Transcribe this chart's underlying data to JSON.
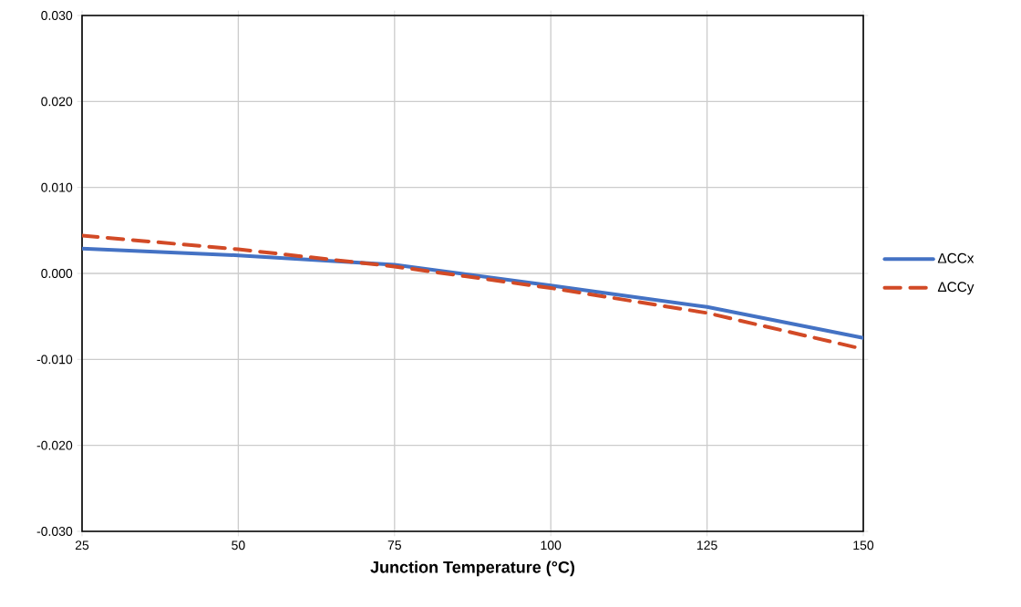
{
  "chart_data": {
    "type": "line",
    "xlabel": "Junction Temperature (°C)",
    "x": [
      25,
      50,
      75,
      100,
      125,
      150
    ],
    "series": [
      {
        "name": "ΔCCx",
        "color": "#4472c4",
        "line_style": "solid",
        "values": [
          0.0029,
          0.0021,
          0.001,
          -0.0014,
          -0.0039,
          -0.0075
        ]
      },
      {
        "name": "ΔCCy",
        "color": "#d24a26",
        "line_style": "dashed",
        "values": [
          0.0044,
          0.0028,
          0.0008,
          -0.0017,
          -0.0046,
          -0.0088
        ]
      }
    ],
    "xlim": [
      25,
      150
    ],
    "xticks": [
      25,
      50,
      75,
      100,
      125,
      150
    ],
    "ylim": [
      -0.03,
      0.03
    ],
    "yticks": [
      {
        "value": -0.03,
        "label": "-0.030"
      },
      {
        "value": -0.02,
        "label": "-0.020"
      },
      {
        "value": -0.01,
        "label": "-0.010"
      },
      {
        "value": 0,
        "label": "0.000"
      },
      {
        "value": 0.01,
        "label": "0.010"
      },
      {
        "value": 0.02,
        "label": "0.020"
      },
      {
        "value": 0.03,
        "label": "0.030"
      }
    ],
    "grid": true,
    "legend": "right",
    "marker": "none"
  }
}
